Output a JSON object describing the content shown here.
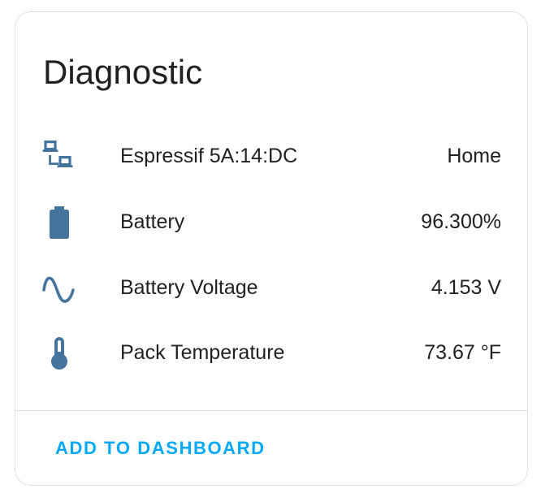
{
  "card": {
    "title": "Diagnostic",
    "icon_color": "#44739e",
    "accent_color": "#03a9f4",
    "rows": [
      {
        "icon": "lan-icon",
        "label": "Espressif 5A:14:DC",
        "value": "Home"
      },
      {
        "icon": "battery-icon",
        "label": "Battery",
        "value": "96.300%"
      },
      {
        "icon": "sine-wave-icon",
        "label": "Battery Voltage",
        "value": "4.153 V"
      },
      {
        "icon": "thermometer-icon",
        "label": "Pack Temperature",
        "value": "73.67 °F"
      }
    ],
    "action_label": "Add to dashboard"
  }
}
